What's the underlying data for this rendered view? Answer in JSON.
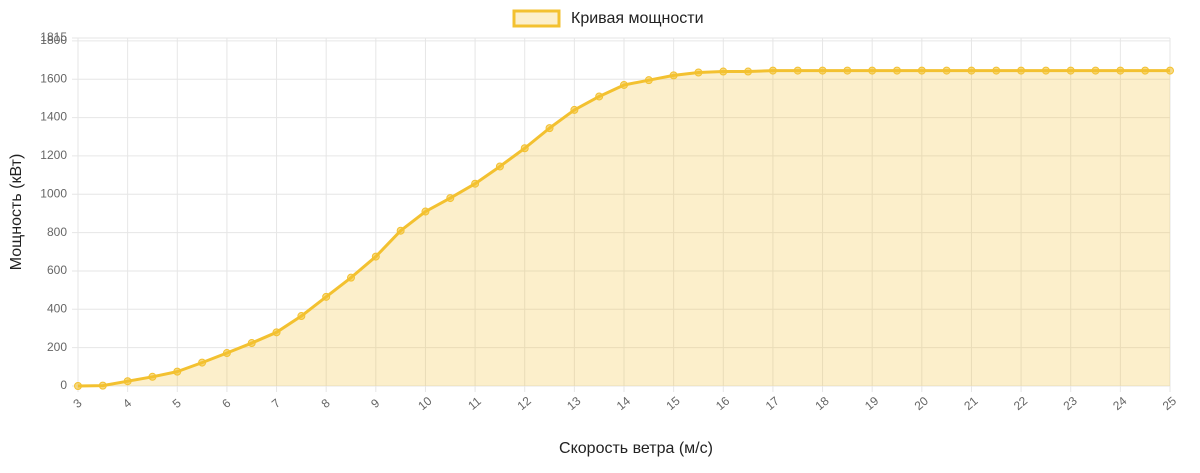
{
  "chart_data": {
    "type": "line",
    "x_label": "Скорость ветра (м/с)",
    "y_label": "Мощность (кВт)",
    "x": [
      3,
      3.5,
      4,
      4.5,
      5,
      5.5,
      6,
      6.5,
      7,
      7.5,
      8,
      8.5,
      9,
      9.5,
      10,
      10.5,
      11,
      11.5,
      12,
      12.5,
      13,
      13.5,
      14,
      14.5,
      15,
      15.5,
      16,
      16.5,
      17,
      17.5,
      18,
      18.5,
      19,
      19.5,
      20,
      20.5,
      21,
      21.5,
      22,
      22.5,
      23,
      23.5,
      24,
      24.5,
      25
    ],
    "series": [
      {
        "name": "Кривая мощности",
        "color": "#f3c130",
        "values": [
          0,
          2,
          25,
          48,
          75,
          122,
          172,
          224,
          280,
          365,
          465,
          565,
          675,
          810,
          910,
          980,
          1055,
          1145,
          1240,
          1345,
          1440,
          1510,
          1570,
          1595,
          1620,
          1635,
          1640,
          1640,
          1645,
          1645,
          1645,
          1645,
          1645,
          1645,
          1645,
          1645,
          1645,
          1645,
          1645,
          1645,
          1645,
          1645,
          1645,
          1645,
          1645
        ]
      }
    ],
    "fill": true,
    "xlim": [
      3,
      25
    ],
    "ylim": [
      0,
      1815
    ],
    "xticks": [
      3,
      4,
      5,
      6,
      7,
      8,
      9,
      10,
      11,
      12,
      13,
      14,
      15,
      16,
      17,
      18,
      19,
      20,
      21,
      22,
      23,
      24,
      25
    ],
    "yticks": [
      0,
      200,
      400,
      600,
      800,
      1000,
      1200,
      1400,
      1600,
      1800,
      1815
    ],
    "grid": true,
    "legend": "top"
  }
}
